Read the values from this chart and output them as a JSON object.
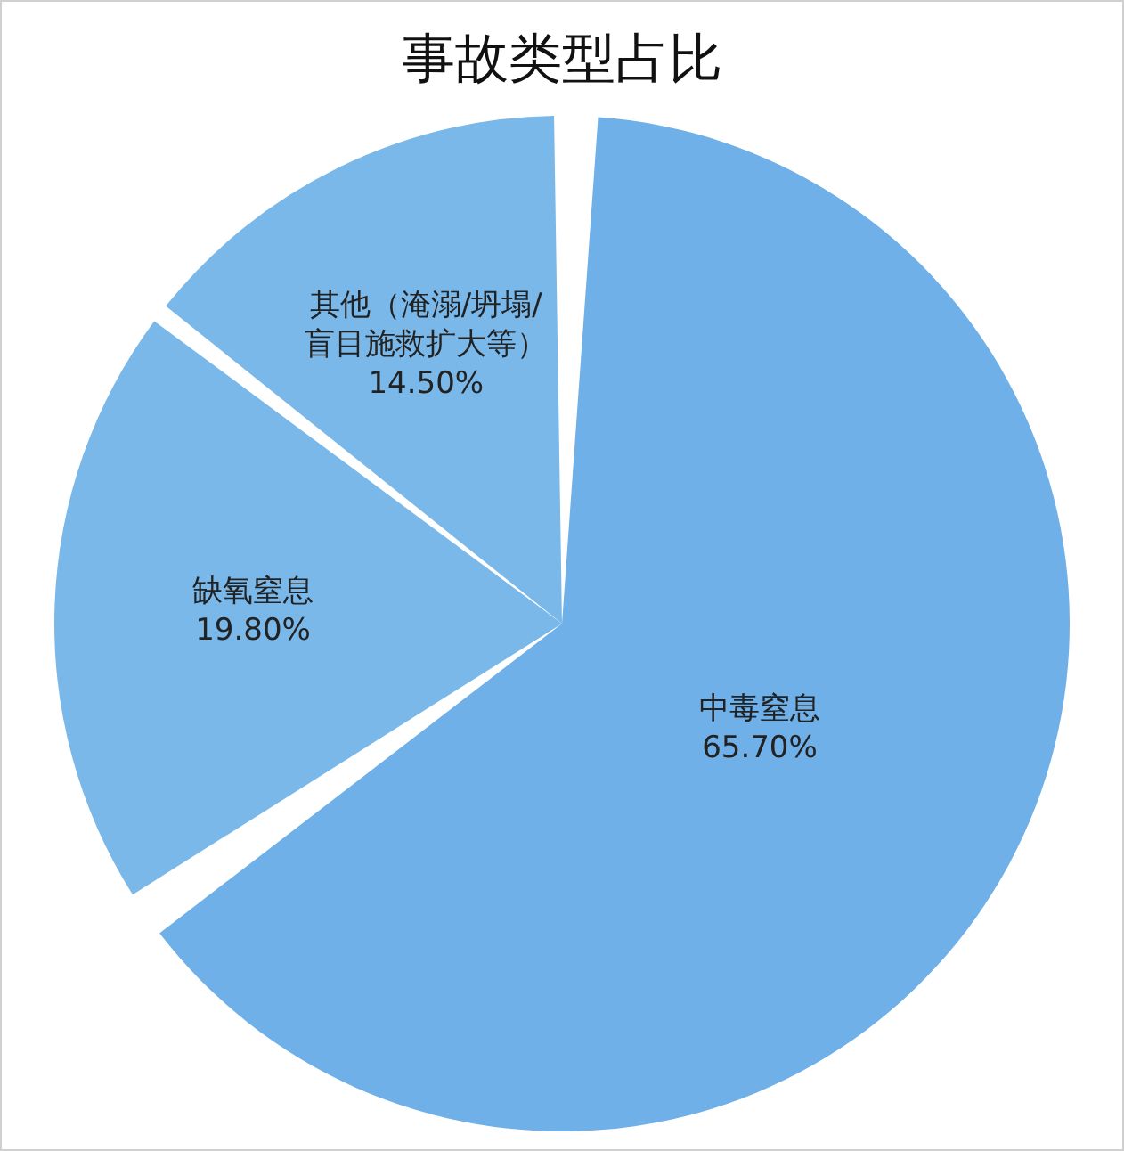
{
  "chart_data": {
    "type": "pie",
    "title": "事故类型占比",
    "categories": [
      "中毒窒息",
      "缺氧窒息",
      "其他（淹溺/坍塌/盲目施救扩大等）"
    ],
    "values": [
      65.7,
      19.8,
      14.5
    ],
    "value_labels": [
      "65.70%",
      "19.80%",
      "14.50%"
    ],
    "colors": [
      "#6fb0e8",
      "#7ab8ea",
      "#7ab8ea"
    ],
    "legend": false
  }
}
